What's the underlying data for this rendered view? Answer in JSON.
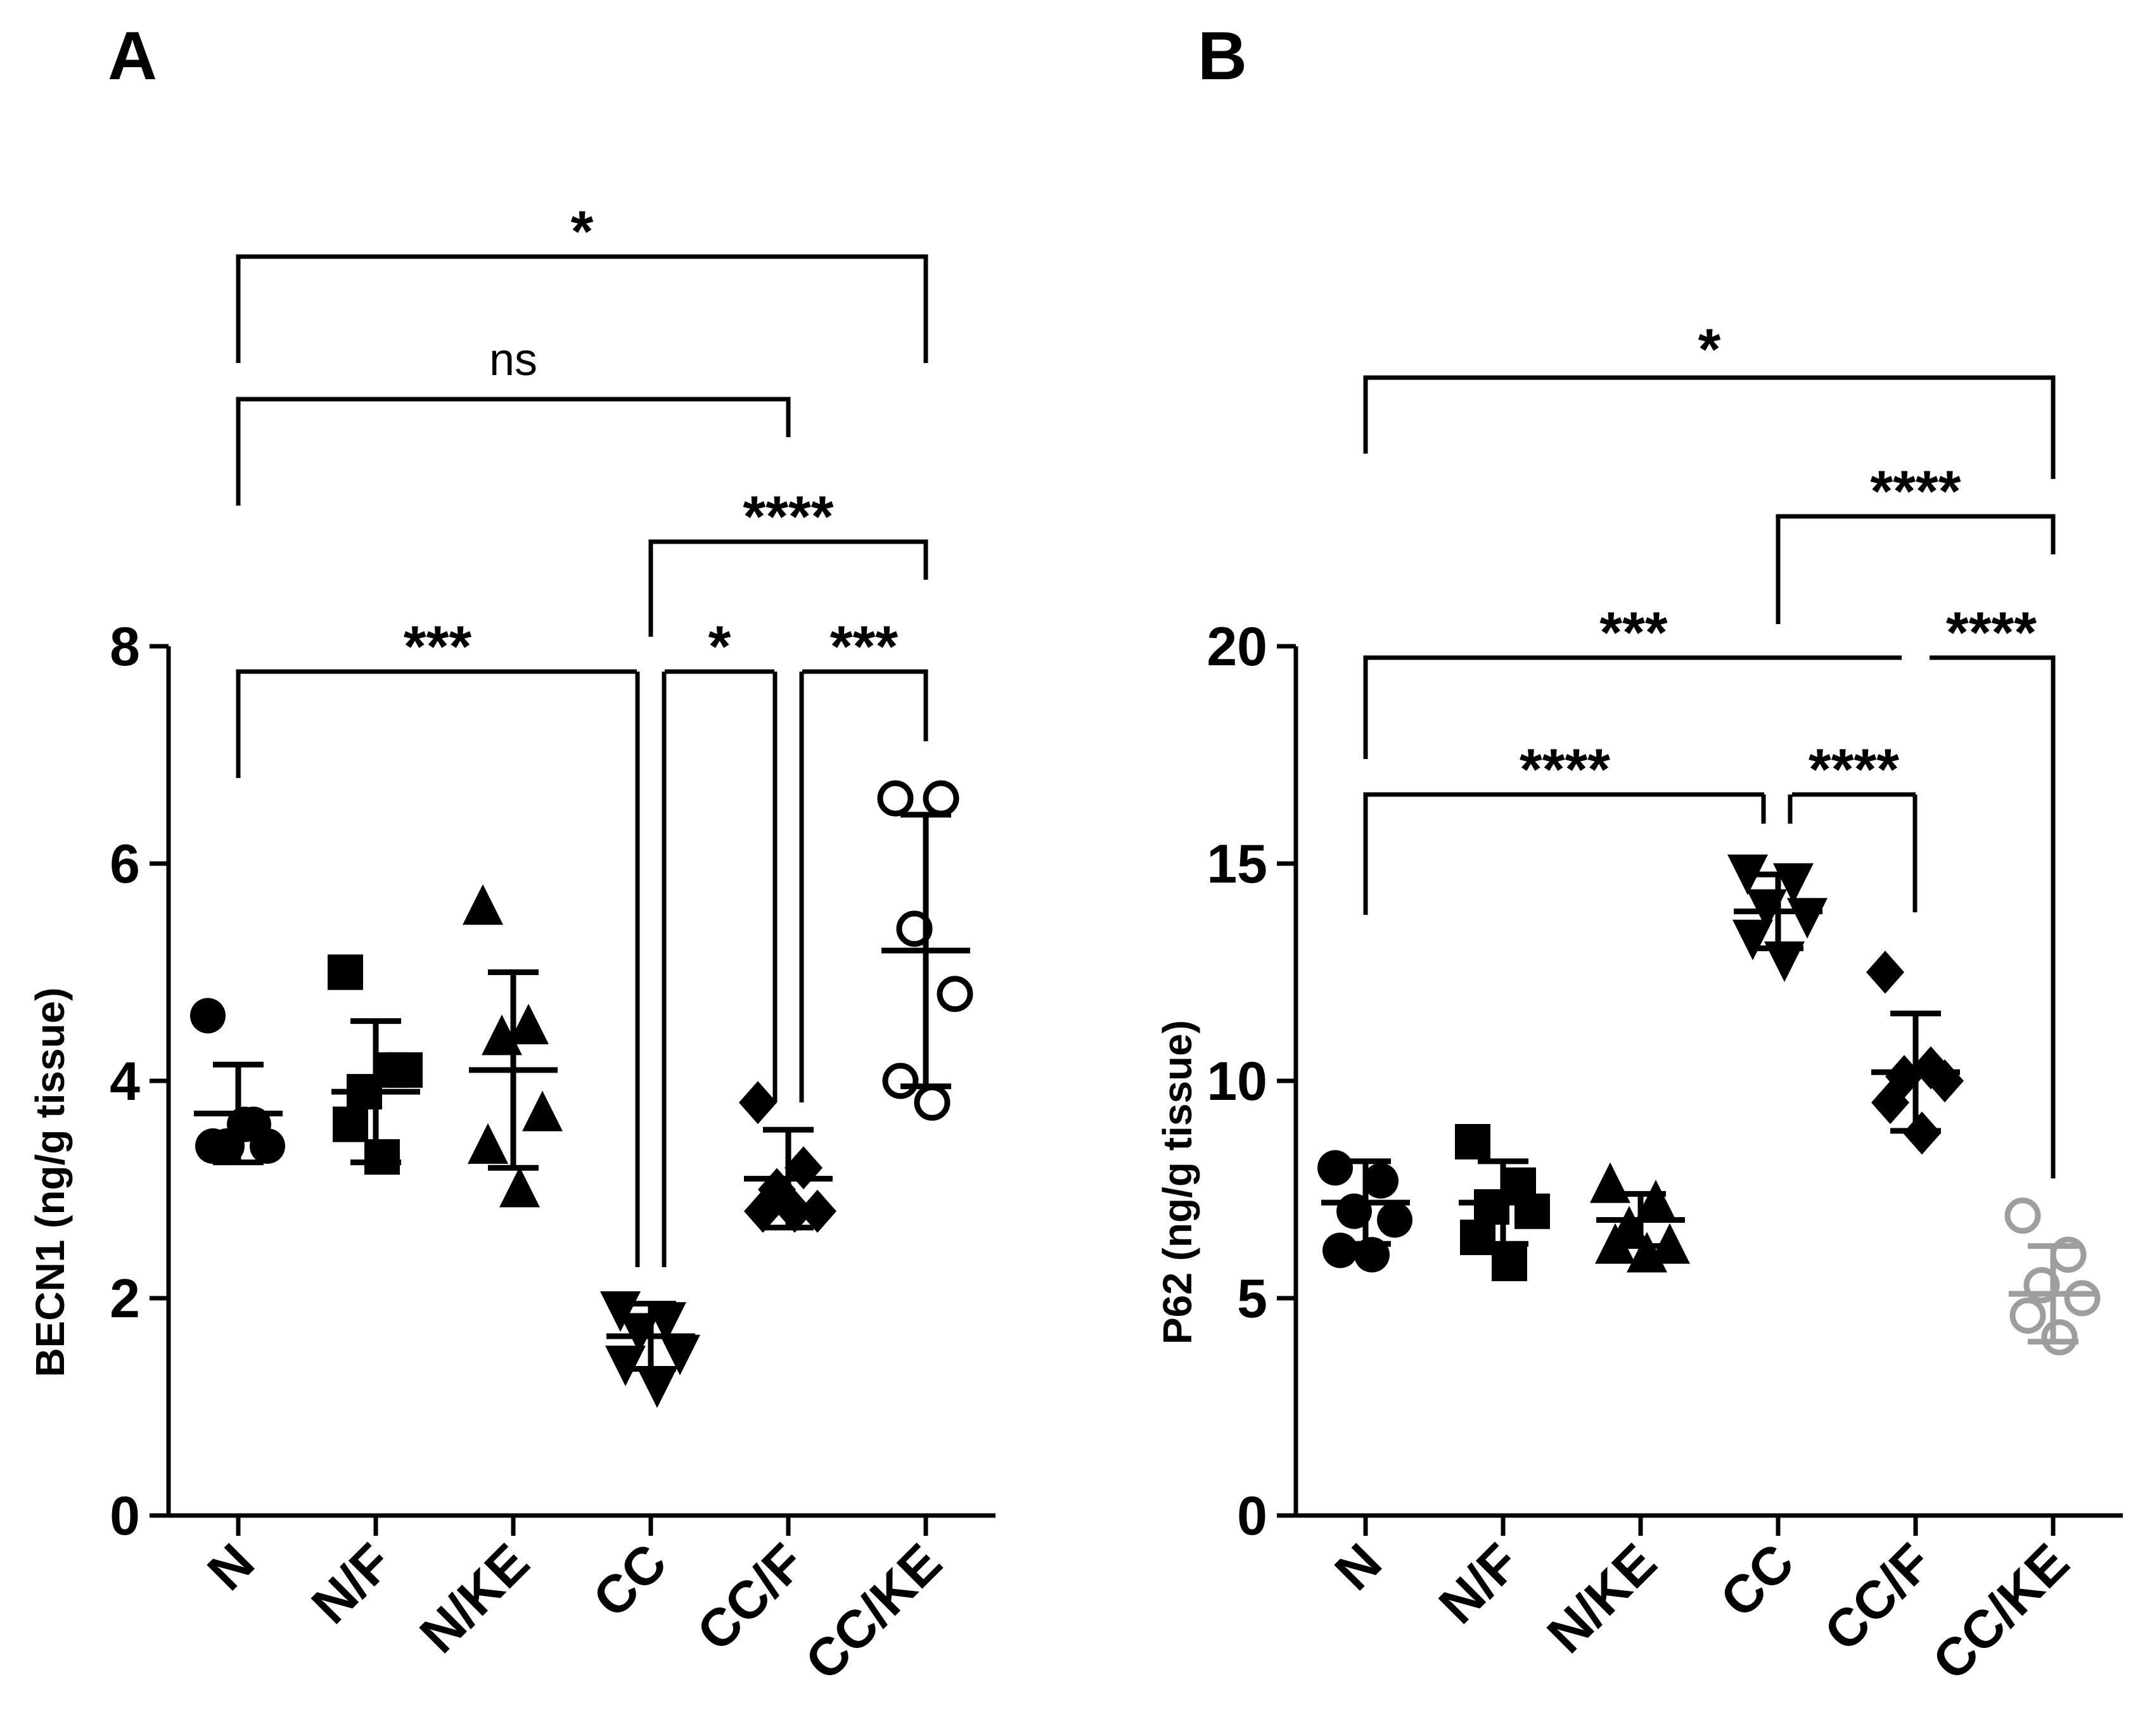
{
  "chart_data": [
    {
      "panel": "A",
      "type": "scatter",
      "ylabel": "BECN1 (ng/g tissue)",
      "ylim": [
        0,
        8
      ],
      "yticks": [
        0,
        2,
        4,
        6,
        8
      ],
      "categories": [
        "N",
        "N/F",
        "N/KE",
        "CC",
        "CC/F",
        "CC/KE"
      ],
      "markers": [
        "circle",
        "square",
        "triangle-up",
        "triangle-down",
        "diamond",
        "circle-open"
      ],
      "colors": [
        "#000000",
        "#000000",
        "#000000",
        "#000000",
        "#000000",
        "#000000"
      ],
      "points": [
        [
          4.6,
          3.6,
          3.4,
          3.4,
          3.4,
          3.6
        ],
        [
          5.0,
          4.1,
          3.9,
          4.1,
          3.6,
          3.3
        ],
        [
          5.6,
          4.5,
          4.4,
          3.7,
          3.4,
          3.0
        ],
        [
          1.9,
          1.8,
          1.7,
          1.5,
          1.4,
          1.2
        ],
        [
          3.8,
          3.2,
          3.0,
          2.8,
          2.8,
          2.8
        ],
        [
          6.6,
          6.6,
          5.4,
          4.8,
          4.0,
          3.8
        ]
      ],
      "means": [
        3.7,
        3.9,
        4.1,
        1.65,
        3.1,
        5.2
      ],
      "sd": [
        0.45,
        0.65,
        0.9,
        0.3,
        0.45,
        1.25
      ],
      "comparisons": [
        {
          "from": "N",
          "to": "CC/KE",
          "label": "*"
        },
        {
          "from": "N",
          "to": "CC/F",
          "label": "ns"
        },
        {
          "from": "CC",
          "to": "CC/KE",
          "label": "****"
        },
        {
          "from": "N",
          "to": "CC",
          "label": "***"
        },
        {
          "from": "CC",
          "to": "CC/F",
          "label": "*"
        },
        {
          "from": "CC/F",
          "to": "CC/KE",
          "label": "***"
        }
      ]
    },
    {
      "panel": "B",
      "type": "scatter",
      "ylabel": "P62 (ng/g tissue)",
      "ylim": [
        0,
        20
      ],
      "yticks": [
        0,
        5,
        10,
        15,
        20
      ],
      "categories": [
        "N",
        "N/F",
        "N/KE",
        "CC",
        "CC/F",
        "CC/KE"
      ],
      "markers": [
        "circle",
        "square",
        "triangle-up",
        "triangle-down",
        "diamond",
        "circle-open"
      ],
      "colors": [
        "#000000",
        "#000000",
        "#000000",
        "#000000",
        "#000000",
        "#9e9e9e"
      ],
      "points": [
        [
          8.0,
          7.7,
          7.0,
          6.8,
          6.1,
          6.0
        ],
        [
          8.6,
          7.6,
          7.1,
          7.0,
          6.4,
          5.8
        ],
        [
          7.6,
          7.2,
          6.6,
          6.2,
          6.2,
          6.0
        ],
        [
          14.8,
          14.6,
          14.0,
          13.8,
          13.3,
          12.8
        ],
        [
          12.5,
          10.3,
          10.1,
          10.0,
          9.5,
          8.8
        ],
        [
          6.9,
          6.0,
          5.3,
          5.0,
          4.6,
          4.1
        ]
      ],
      "means": [
        7.2,
        7.2,
        6.8,
        13.9,
        10.2,
        5.1
      ],
      "sd": [
        0.95,
        0.95,
        0.6,
        0.85,
        1.35,
        1.1
      ],
      "comparisons": [
        {
          "from": "N",
          "to": "CC/KE",
          "label": "*"
        },
        {
          "from": "CC",
          "to": "CC/KE",
          "label": "****"
        },
        {
          "from": "N",
          "to": "CC/F",
          "label": "***"
        },
        {
          "from": "CC/F",
          "to": "CC/KE",
          "label": "****"
        },
        {
          "from": "N",
          "to": "CC",
          "label": "****"
        },
        {
          "from": "CC",
          "to": "CC/F",
          "label": "****"
        }
      ]
    }
  ]
}
